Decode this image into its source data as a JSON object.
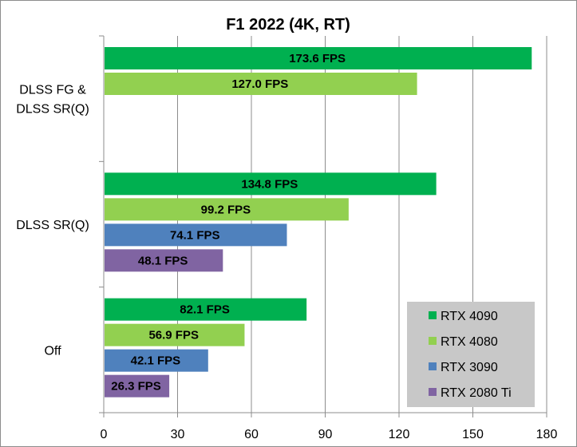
{
  "chart_data": {
    "type": "bar",
    "orientation": "horizontal",
    "title": "F1 2022 (4K, RT)",
    "xlabel": "",
    "ylabel": "",
    "xlim": [
      0,
      180
    ],
    "x_ticks": [
      0,
      30,
      60,
      90,
      120,
      150,
      180
    ],
    "grid": "vertical",
    "legend_position": "bottom-right",
    "categories": [
      {
        "label_lines": [
          "DLSS FG &",
          "DLSS SR(Q)"
        ]
      },
      {
        "label_lines": [
          "DLSS SR(Q)"
        ]
      },
      {
        "label_lines": [
          "Off"
        ]
      }
    ],
    "series": [
      {
        "name": "RTX 4090",
        "color": "#00b050",
        "values": [
          173.6,
          134.8,
          82.1
        ],
        "labels": [
          "173.6 FPS",
          "134.8 FPS",
          "82.1 FPS"
        ]
      },
      {
        "name": "RTX 4080",
        "color": "#92d050",
        "values": [
          127.0,
          99.2,
          56.9
        ],
        "labels": [
          "127.0 FPS",
          "99.2 FPS",
          "56.9 FPS"
        ]
      },
      {
        "name": "RTX 3090",
        "color": "#4f81bd",
        "values": [
          null,
          74.1,
          42.1
        ],
        "labels": [
          null,
          "74.1 FPS",
          "42.1 FPS"
        ]
      },
      {
        "name": "RTX 2080 Ti",
        "color": "#8064a2",
        "values": [
          null,
          48.1,
          26.3
        ],
        "labels": [
          null,
          "48.1 FPS",
          "26.3 FPS"
        ]
      }
    ]
  }
}
